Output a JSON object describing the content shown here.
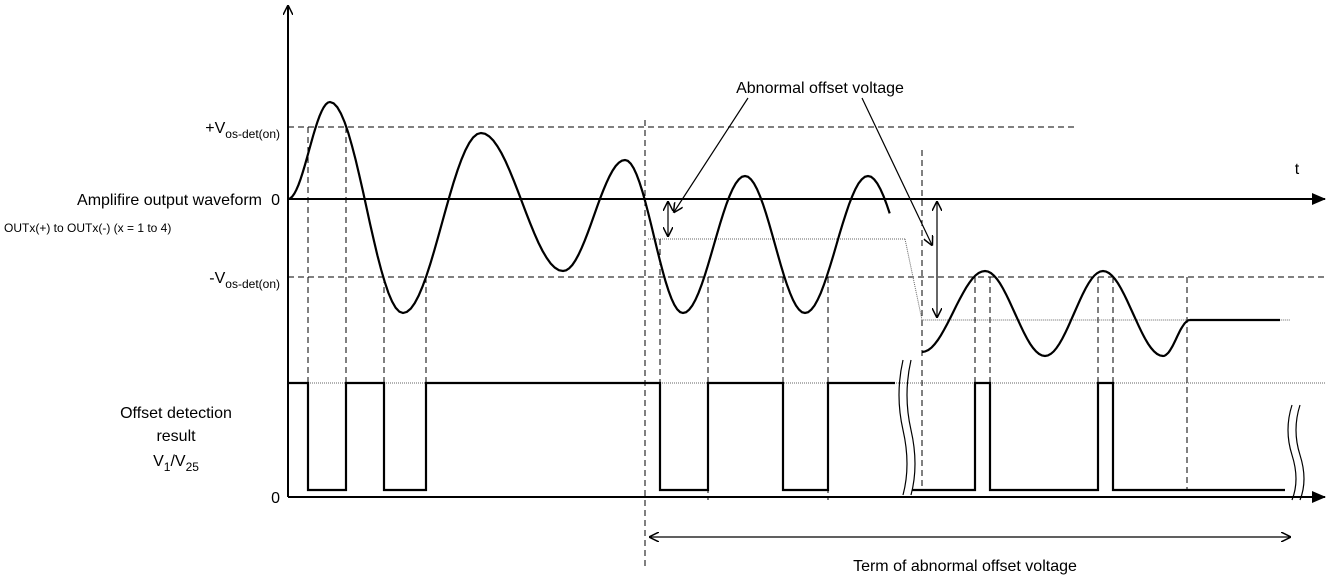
{
  "labels": {
    "v_pos": {
      "main": "+V",
      "sub": "os-det(on)"
    },
    "v_neg": {
      "main": "-V",
      "sub": "os-det(on)"
    },
    "waveform_label": "Amplifire output waveform",
    "zero_top": "0",
    "waveform_sub": "OUTx(+) to OUTx(-) (x = 1 to 4)",
    "t": "t",
    "abnormal": "Abnormal offset voltage",
    "offset_lines": [
      "Offset detection",
      "result"
    ],
    "v_ratio": [
      "V",
      "1",
      "/V",
      "25"
    ],
    "zero_bottom": "0",
    "term": "Term of abnormal offset voltage"
  }
}
